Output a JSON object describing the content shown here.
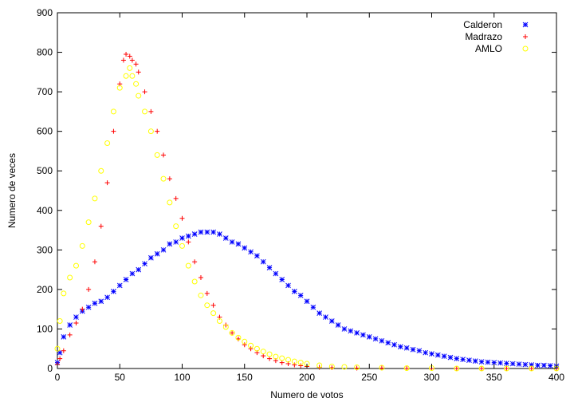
{
  "chart_data": {
    "type": "scatter",
    "xlabel": "Numero de votos",
    "ylabel": "Numero de veces",
    "xlim": [
      0,
      400
    ],
    "ylim": [
      0,
      900
    ],
    "xticks": [
      0,
      50,
      100,
      150,
      200,
      250,
      300,
      350,
      400
    ],
    "yticks": [
      0,
      100,
      200,
      300,
      400,
      500,
      600,
      700,
      800,
      900
    ],
    "grid": false,
    "legend": "top-right",
    "series": [
      {
        "name": "Calderon",
        "marker": "asterisk",
        "color": "#0000ff",
        "points": [
          [
            0,
            15
          ],
          [
            2,
            40
          ],
          [
            5,
            80
          ],
          [
            10,
            110
          ],
          [
            15,
            130
          ],
          [
            20,
            145
          ],
          [
            25,
            155
          ],
          [
            30,
            165
          ],
          [
            35,
            170
          ],
          [
            40,
            180
          ],
          [
            45,
            195
          ],
          [
            50,
            210
          ],
          [
            55,
            225
          ],
          [
            60,
            240
          ],
          [
            65,
            250
          ],
          [
            70,
            265
          ],
          [
            75,
            280
          ],
          [
            80,
            290
          ],
          [
            85,
            300
          ],
          [
            90,
            315
          ],
          [
            95,
            320
          ],
          [
            100,
            330
          ],
          [
            105,
            335
          ],
          [
            110,
            340
          ],
          [
            115,
            345
          ],
          [
            120,
            345
          ],
          [
            125,
            345
          ],
          [
            130,
            340
          ],
          [
            135,
            330
          ],
          [
            140,
            320
          ],
          [
            145,
            315
          ],
          [
            150,
            305
          ],
          [
            155,
            295
          ],
          [
            160,
            285
          ],
          [
            165,
            270
          ],
          [
            170,
            255
          ],
          [
            175,
            240
          ],
          [
            180,
            225
          ],
          [
            185,
            210
          ],
          [
            190,
            195
          ],
          [
            195,
            185
          ],
          [
            200,
            170
          ],
          [
            205,
            155
          ],
          [
            210,
            140
          ],
          [
            215,
            130
          ],
          [
            220,
            120
          ],
          [
            225,
            110
          ],
          [
            230,
            100
          ],
          [
            235,
            95
          ],
          [
            240,
            90
          ],
          [
            245,
            85
          ],
          [
            250,
            80
          ],
          [
            255,
            75
          ],
          [
            260,
            70
          ],
          [
            265,
            65
          ],
          [
            270,
            60
          ],
          [
            275,
            55
          ],
          [
            280,
            52
          ],
          [
            285,
            48
          ],
          [
            290,
            45
          ],
          [
            295,
            40
          ],
          [
            300,
            37
          ],
          [
            305,
            34
          ],
          [
            310,
            31
          ],
          [
            315,
            28
          ],
          [
            320,
            25
          ],
          [
            325,
            23
          ],
          [
            330,
            21
          ],
          [
            335,
            19
          ],
          [
            340,
            17
          ],
          [
            345,
            16
          ],
          [
            350,
            15
          ],
          [
            355,
            14
          ],
          [
            360,
            13
          ],
          [
            365,
            12
          ],
          [
            370,
            11
          ],
          [
            375,
            10
          ],
          [
            380,
            9
          ],
          [
            385,
            8
          ],
          [
            390,
            8
          ],
          [
            395,
            7
          ],
          [
            400,
            6
          ]
        ]
      },
      {
        "name": "Madrazo",
        "marker": "plus",
        "color": "#ff0000",
        "points": [
          [
            0,
            10
          ],
          [
            2,
            25
          ],
          [
            5,
            45
          ],
          [
            10,
            85
          ],
          [
            15,
            115
          ],
          [
            20,
            150
          ],
          [
            25,
            200
          ],
          [
            30,
            270
          ],
          [
            35,
            360
          ],
          [
            40,
            470
          ],
          [
            45,
            600
          ],
          [
            50,
            720
          ],
          [
            53,
            780
          ],
          [
            55,
            795
          ],
          [
            58,
            790
          ],
          [
            60,
            780
          ],
          [
            63,
            770
          ],
          [
            65,
            750
          ],
          [
            70,
            700
          ],
          [
            75,
            650
          ],
          [
            80,
            600
          ],
          [
            85,
            540
          ],
          [
            90,
            480
          ],
          [
            95,
            430
          ],
          [
            100,
            380
          ],
          [
            105,
            320
          ],
          [
            110,
            270
          ],
          [
            115,
            230
          ],
          [
            120,
            190
          ],
          [
            125,
            160
          ],
          [
            130,
            130
          ],
          [
            135,
            110
          ],
          [
            140,
            90
          ],
          [
            145,
            75
          ],
          [
            150,
            60
          ],
          [
            155,
            50
          ],
          [
            160,
            40
          ],
          [
            165,
            32
          ],
          [
            170,
            25
          ],
          [
            175,
            20
          ],
          [
            180,
            15
          ],
          [
            185,
            12
          ],
          [
            190,
            9
          ],
          [
            195,
            7
          ],
          [
            200,
            5
          ],
          [
            210,
            3
          ],
          [
            220,
            2
          ],
          [
            240,
            1
          ],
          [
            260,
            1
          ],
          [
            280,
            0
          ],
          [
            300,
            0
          ],
          [
            320,
            0
          ],
          [
            340,
            0
          ],
          [
            360,
            0
          ],
          [
            380,
            0
          ],
          [
            400,
            0
          ]
        ]
      },
      {
        "name": "AMLO",
        "marker": "circle",
        "color": "#ffff00",
        "points": [
          [
            0,
            50
          ],
          [
            2,
            120
          ],
          [
            5,
            190
          ],
          [
            10,
            230
          ],
          [
            15,
            260
          ],
          [
            20,
            310
          ],
          [
            25,
            370
          ],
          [
            30,
            430
          ],
          [
            35,
            500
          ],
          [
            40,
            570
          ],
          [
            45,
            650
          ],
          [
            50,
            710
          ],
          [
            55,
            740
          ],
          [
            58,
            760
          ],
          [
            60,
            740
          ],
          [
            63,
            720
          ],
          [
            65,
            690
          ],
          [
            70,
            650
          ],
          [
            75,
            600
          ],
          [
            80,
            540
          ],
          [
            85,
            480
          ],
          [
            90,
            420
          ],
          [
            95,
            360
          ],
          [
            100,
            310
          ],
          [
            105,
            260
          ],
          [
            110,
            220
          ],
          [
            115,
            185
          ],
          [
            120,
            160
          ],
          [
            125,
            140
          ],
          [
            130,
            120
          ],
          [
            135,
            105
          ],
          [
            140,
            90
          ],
          [
            145,
            78
          ],
          [
            150,
            68
          ],
          [
            155,
            58
          ],
          [
            160,
            50
          ],
          [
            165,
            43
          ],
          [
            170,
            36
          ],
          [
            175,
            30
          ],
          [
            180,
            26
          ],
          [
            185,
            22
          ],
          [
            190,
            18
          ],
          [
            195,
            15
          ],
          [
            200,
            12
          ],
          [
            210,
            8
          ],
          [
            220,
            5
          ],
          [
            230,
            4
          ],
          [
            240,
            3
          ],
          [
            260,
            2
          ],
          [
            280,
            1
          ],
          [
            300,
            1
          ],
          [
            320,
            0
          ],
          [
            340,
            0
          ],
          [
            360,
            0
          ],
          [
            380,
            0
          ],
          [
            400,
            0
          ]
        ]
      }
    ]
  }
}
